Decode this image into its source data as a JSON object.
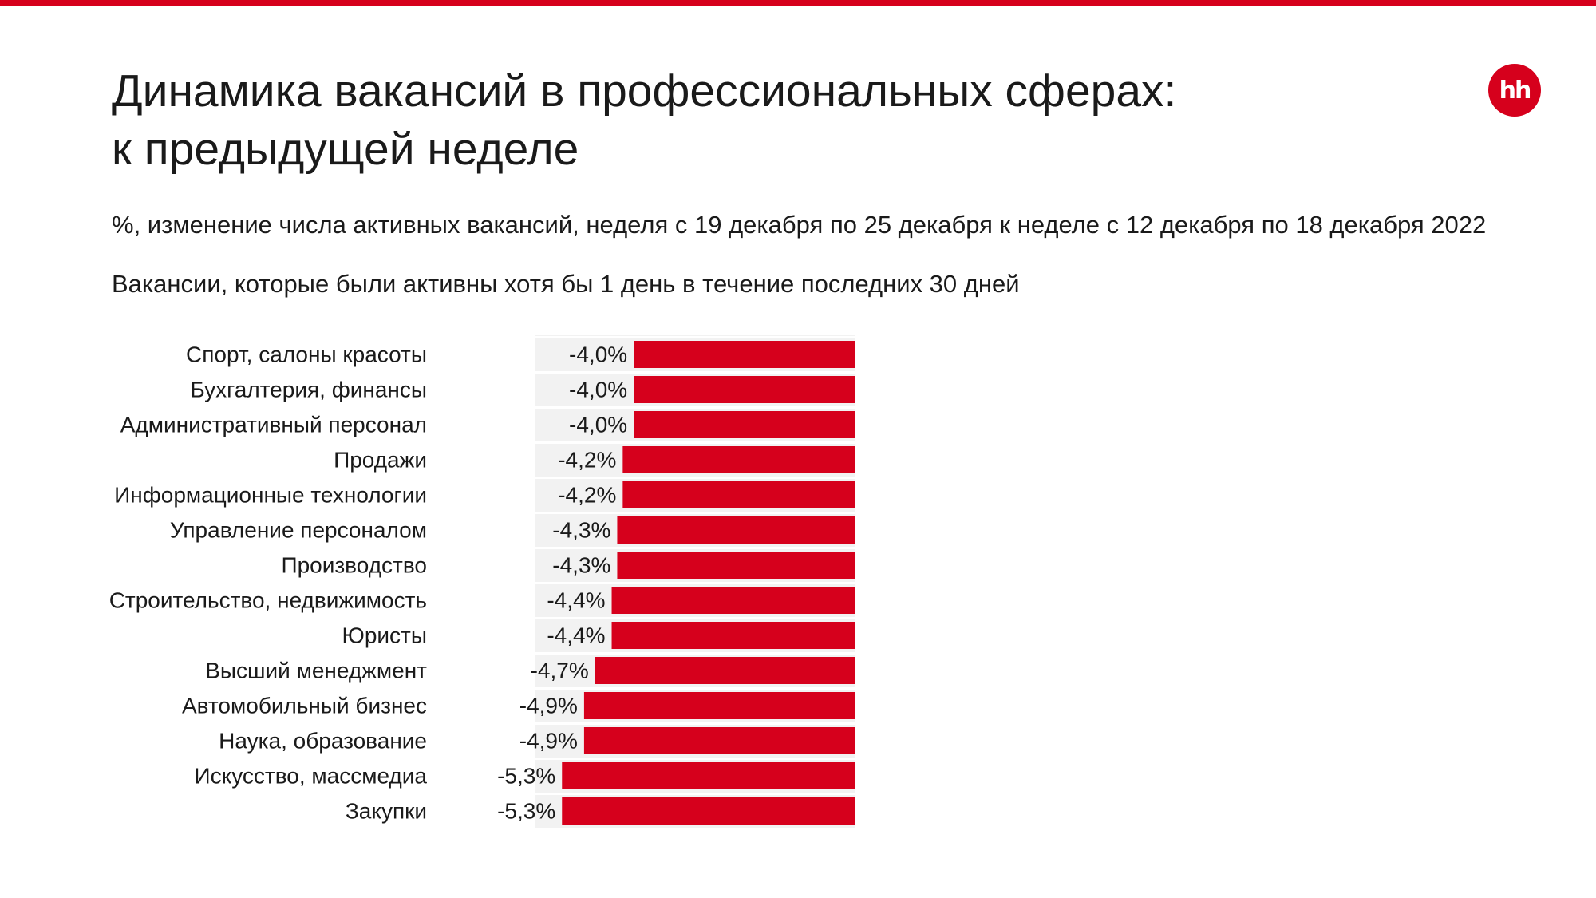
{
  "header": {
    "title_line1": "Динамика вакансий в профессиональных сферах:",
    "title_line2": "к предыдущей неделе",
    "logo_text": "hh"
  },
  "subtitle": "%, изменение числа активных вакансий, неделя с 19 декабря по 25 декабря к неделе с 12 декабря по 18 декабря 2022",
  "note": "Вакансии, которые были активны хотя бы 1 день в течение последних 30 дней",
  "colors": {
    "accent": "#d6001c",
    "bar": "#d6001c",
    "track": "#f2f2f2"
  },
  "chart_data": {
    "type": "bar",
    "orientation": "horizontal",
    "categories": [
      "Спорт, салоны красоты",
      "Бухгалтерия, финансы",
      "Административный персонал",
      "Продажи",
      "Информационные технологии",
      "Управление персоналом",
      "Производство",
      "Строительство, недвижимость",
      "Юристы",
      "Высший менеджмент",
      "Автомобильный бизнес",
      "Наука, образование",
      "Искусство, массмедиа",
      "Закупки"
    ],
    "values": [
      -4.0,
      -4.0,
      -4.0,
      -4.2,
      -4.2,
      -4.3,
      -4.3,
      -4.4,
      -4.4,
      -4.7,
      -4.9,
      -4.9,
      -5.3,
      -5.3
    ],
    "labels": [
      "-4,0%",
      "-4,0%",
      "-4,0%",
      "-4,2%",
      "-4,2%",
      "-4,3%",
      "-4,3%",
      "-4,4%",
      "-4,4%",
      "-4,7%",
      "-4,9%",
      "-4,9%",
      "-5,3%",
      "-5,3%"
    ],
    "xlim": [
      -6.0,
      0
    ],
    "grid": false,
    "legend": "none"
  }
}
